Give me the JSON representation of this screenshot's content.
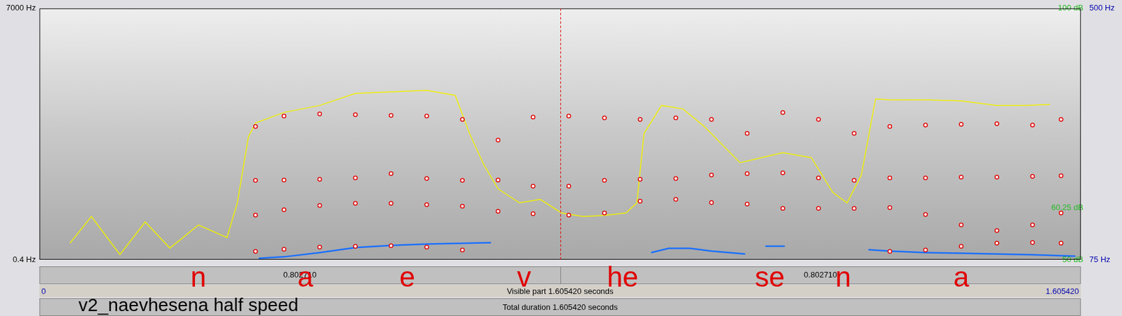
{
  "chart_data": {
    "type": "spectrogram",
    "title": "v2_naevhesena half speed",
    "xlim": [
      0,
      1.60542
    ],
    "xticks": [
      {
        "value": 0,
        "label": "0"
      },
      {
        "value": 1.60542,
        "label": "1.605420"
      }
    ],
    "ylim": [
      0.4,
      7000
    ],
    "yticks": [
      {
        "value": 0.4,
        "label": "0.4 Hz"
      },
      {
        "value": 7000,
        "label": "7000 Hz"
      }
    ],
    "y2lim": [
      50,
      100
    ],
    "y2ticks": [
      {
        "value": 50,
        "label": "50 dB"
      },
      {
        "value": 60.25,
        "label": "60.25 dB"
      },
      {
        "value": 100,
        "label": "100 dB"
      }
    ],
    "y3lim": [
      75,
      500
    ],
    "y3ticks": [
      {
        "value": 75,
        "label": "75 Hz"
      },
      {
        "value": 500,
        "label": "500 Hz"
      }
    ],
    "cursor": 0.80271,
    "cursor_labels": [
      "0.802710",
      "0.802710"
    ],
    "visible_part": "Visible part 1.605420 seconds",
    "total_duration": "Total duration 1.605420 seconds",
    "segments": [
      {
        "x": 0.245,
        "text": "n"
      },
      {
        "x": 0.41,
        "text": "a"
      },
      {
        "x": 0.567,
        "text": "e"
      },
      {
        "x": 0.747,
        "text": "v"
      },
      {
        "x": 0.899,
        "text": "he"
      },
      {
        "x": 1.126,
        "text": "se"
      },
      {
        "x": 1.239,
        "text": "n"
      },
      {
        "x": 1.421,
        "text": "a"
      }
    ],
    "series": [
      {
        "type": "scatter",
        "color": "#e00000",
        "marker": "circle",
        "x": [
          0.333,
          0.377,
          0.432,
          0.487,
          0.542,
          0.597,
          0.652,
          0.707,
          0.761,
          0.816,
          0.871,
          0.926,
          0.981,
          1.036,
          1.091,
          1.146,
          1.201,
          1.256,
          1.311,
          1.366,
          1.421,
          1.476,
          1.531,
          1.575
        ],
        "values": [
          230,
          290,
          350,
          370,
          390,
          350,
          270,
          null,
          null,
          null,
          null,
          null,
          null,
          null,
          null,
          null,
          null,
          null,
          230,
          270,
          370,
          460,
          480,
          460
        ]
      },
      {
        "type": "scatter",
        "color": "#e00000",
        "marker": "circle",
        "x": [
          0.333,
          0.377,
          0.432,
          0.487,
          0.542,
          0.597,
          0.652,
          0.707,
          0.761,
          0.816,
          0.871,
          0.926,
          0.981,
          1.036,
          1.091,
          1.146,
          1.201,
          1.256,
          1.311,
          1.366,
          1.421,
          1.476,
          1.531,
          1.575
        ],
        "values": [
          1240,
          1390,
          1510,
          1570,
          1570,
          1530,
          1490,
          1350,
          1280,
          1240,
          1300,
          1630,
          1680,
          1590,
          1550,
          1430,
          1430,
          1430,
          1450,
          1260,
          970,
          810,
          970,
          1300
        ]
      },
      {
        "type": "scatter",
        "color": "#e00000",
        "marker": "circle",
        "x": [
          0.333,
          0.377,
          0.432,
          0.487,
          0.542,
          0.597,
          0.652,
          0.707,
          0.761,
          0.816,
          0.871,
          0.926,
          0.981,
          1.036,
          1.091,
          1.146,
          1.201,
          1.256,
          1.311,
          1.366,
          1.421,
          1.476,
          1.531,
          1.575
        ],
        "values": [
          2210,
          2220,
          2240,
          2280,
          2400,
          2260,
          2210,
          2220,
          2050,
          2050,
          2210,
          2240,
          2260,
          2360,
          2400,
          2420,
          2280,
          2210,
          2280,
          2280,
          2300,
          2300,
          2320,
          2340
        ]
      },
      {
        "type": "scatter",
        "color": "#e00000",
        "marker": "circle",
        "x": [
          0.333,
          0.377,
          0.432,
          0.487,
          0.542,
          0.597,
          0.652,
          0.707,
          0.761,
          0.816,
          0.871,
          0.926,
          0.981,
          1.036,
          1.091,
          1.146,
          1.201,
          1.256,
          1.311,
          1.366,
          1.421,
          1.476,
          1.531,
          1.575
        ],
        "values": [
          3710,
          4000,
          4060,
          4040,
          4020,
          4000,
          3910,
          3330,
          3970,
          4000,
          3950,
          3910,
          3950,
          3910,
          3520,
          4100,
          3910,
          3520,
          3710,
          3750,
          3770,
          3790,
          3750,
          3910
        ]
      },
      {
        "type": "line",
        "color": "#f0f000",
        "axis": "y2",
        "x": [
          0.047,
          0.08,
          0.124,
          0.163,
          0.201,
          0.245,
          0.289,
          0.305,
          0.322,
          0.333,
          0.377,
          0.432,
          0.487,
          0.542,
          0.597,
          0.641,
          0.663,
          0.685,
          0.707,
          0.74,
          0.772,
          0.805,
          0.838,
          0.871,
          0.904,
          0.921,
          0.932,
          0.959,
          0.992,
          1.025,
          1.08,
          1.113,
          1.146,
          1.19,
          1.223,
          1.245,
          1.267,
          1.289,
          1.311,
          1.366,
          1.421,
          1.476,
          1.52,
          1.558
        ],
        "values": [
          53.3,
          58.6,
          51.0,
          57.5,
          52.3,
          56.9,
          54.4,
          61.3,
          74.4,
          77.2,
          79.3,
          80.7,
          83.1,
          83.4,
          83.7,
          82.7,
          75.1,
          68.9,
          64.1,
          61.3,
          62.0,
          59.3,
          58.6,
          58.8,
          59.3,
          61.3,
          75.1,
          80.7,
          80.0,
          76.5,
          69.3,
          70.3,
          71.3,
          70.3,
          63.4,
          61.3,
          66.8,
          82.0,
          81.8,
          81.8,
          81.6,
          80.7,
          80.7,
          80.9
        ]
      },
      {
        "type": "line",
        "color": "#1a6fff",
        "axis": "y3",
        "x": [
          0.338,
          0.377,
          0.432,
          0.487,
          0.542,
          0.597,
          0.652,
          0.696,
          0.82,
          0.943,
          0.97,
          1.003,
          1.036,
          1.088,
          1.1,
          1.119,
          1.149,
          1.2,
          1.278,
          1.311,
          1.366,
          1.421,
          1.476,
          1.531,
          1.597
        ],
        "values": [
          77.4,
          79.8,
          87.0,
          95.4,
          99.0,
          101.4,
          102.6,
          103.8,
          null,
          87.0,
          94.2,
          94.2,
          89.4,
          84.6,
          null,
          97.8,
          97.8,
          null,
          91.8,
          89.4,
          87.0,
          85.8,
          84.6,
          83.4,
          81.0
        ]
      }
    ]
  }
}
